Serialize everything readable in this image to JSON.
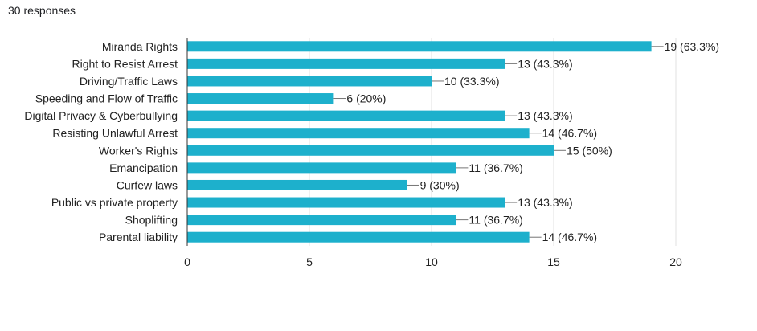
{
  "header": {
    "responses": "30 responses"
  },
  "colors": {
    "bar": "#1DB0CC",
    "grid": "#E0E0E0",
    "axis": "#333333",
    "connector": "#757575"
  },
  "chart_data": {
    "type": "bar",
    "orientation": "horizontal",
    "title": "",
    "xlabel": "",
    "ylabel": "",
    "categories": [
      "Miranda Rights",
      "Right to Resist Arrest",
      "Driving/Traffic Laws",
      "Speeding and Flow of Traffic",
      "Digital Privacy & Cyberbullying",
      "Resisting Unlawful Arrest",
      "Worker's Rights",
      "Emancipation",
      "Curfew laws",
      "Public vs private property",
      "Shoplifting",
      "Parental liability"
    ],
    "values": [
      19,
      13,
      10,
      6,
      13,
      14,
      15,
      11,
      9,
      13,
      11,
      14
    ],
    "data_labels": [
      "19 (63.3%)",
      "13 (43.3%)",
      "10 (33.3%)",
      "6 (20%)",
      "13 (43.3%)",
      "14 (46.7%)",
      "15 (50%)",
      "11 (36.7%)",
      "9 (30%)",
      "13 (43.3%)",
      "11 (36.7%)",
      "14 (46.7%)"
    ],
    "xlim": [
      0,
      20
    ],
    "x_ticks": [
      "0",
      "5",
      "10",
      "15",
      "20"
    ],
    "x_tick_values": [
      0,
      5,
      10,
      15,
      20
    ],
    "grid": true,
    "legend": "none"
  }
}
